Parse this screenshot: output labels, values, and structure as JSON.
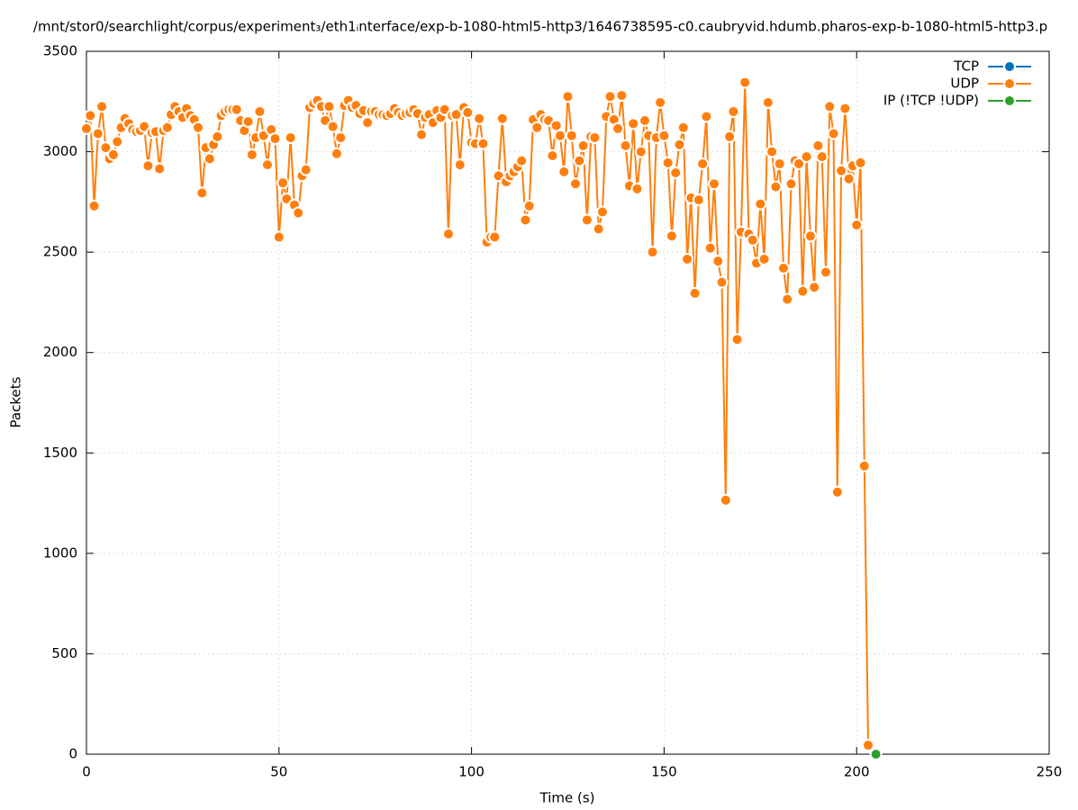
{
  "chart_data": {
    "type": "line",
    "title": "/mnt/stor0/searchlight/corpus/experiment₃/eth1ᵢnterface/exp-b-1080-html5-http3/1646738595-c0.caubryvid.hdumb.pharos-exp-b-1080-html5-http3.p",
    "x_label": "Time (s)",
    "y_label": "Packets",
    "xlim": [
      0,
      250
    ],
    "xticks": [
      0,
      50,
      100,
      150,
      200,
      250
    ],
    "ylim": [
      0,
      3500
    ],
    "yticks": [
      0,
      500,
      1000,
      1500,
      2000,
      2500,
      3000,
      3500
    ],
    "grid": true,
    "legend": "top-right",
    "series": [
      {
        "name": "TCP",
        "color": "#0072bd",
        "x": [],
        "values": []
      },
      {
        "name": "UDP",
        "color": "#ff7f0e",
        "x": [
          0,
          1,
          2,
          3,
          4,
          5,
          6,
          7,
          8,
          9,
          10,
          11,
          12,
          13,
          14,
          15,
          16,
          17,
          18,
          19,
          20,
          21,
          22,
          23,
          24,
          25,
          26,
          27,
          28,
          29,
          30,
          31,
          32,
          33,
          34,
          35,
          36,
          37,
          38,
          39,
          40,
          41,
          42,
          43,
          44,
          45,
          46,
          47,
          48,
          49,
          50,
          51,
          52,
          53,
          54,
          55,
          56,
          57,
          58,
          59,
          60,
          61,
          62,
          63,
          64,
          65,
          66,
          67,
          68,
          69,
          70,
          71,
          72,
          73,
          74,
          75,
          76,
          77,
          78,
          79,
          80,
          81,
          82,
          83,
          84,
          85,
          86,
          87,
          88,
          89,
          90,
          91,
          92,
          93,
          94,
          95,
          96,
          97,
          98,
          99,
          100,
          101,
          102,
          103,
          104,
          105,
          106,
          107,
          108,
          109,
          110,
          111,
          112,
          113,
          114,
          115,
          116,
          117,
          118,
          119,
          120,
          121,
          122,
          123,
          124,
          125,
          126,
          127,
          128,
          129,
          130,
          131,
          132,
          133,
          134,
          135,
          136,
          137,
          138,
          139,
          140,
          141,
          142,
          143,
          144,
          145,
          146,
          147,
          148,
          149,
          150,
          151,
          152,
          153,
          154,
          155,
          156,
          157,
          158,
          159,
          160,
          161,
          162,
          163,
          164,
          165,
          166,
          167,
          168,
          169,
          170,
          171,
          172,
          173,
          174,
          175,
          176,
          177,
          178,
          179,
          180,
          181,
          182,
          183,
          184,
          185,
          186,
          187,
          188,
          189,
          190,
          191,
          192,
          193,
          194,
          195,
          196,
          197,
          198,
          199,
          200,
          201,
          202,
          203
        ],
        "values": [
          3115,
          3180,
          2730,
          3090,
          3225,
          3020,
          2965,
          2985,
          3050,
          3120,
          3165,
          3140,
          3110,
          3100,
          3105,
          3125,
          2930,
          3095,
          3100,
          2915,
          3105,
          3120,
          3185,
          3225,
          3200,
          3170,
          3215,
          3180,
          3160,
          3120,
          2795,
          3020,
          2965,
          3035,
          3075,
          3180,
          3200,
          3210,
          3210,
          3210,
          3155,
          3105,
          3150,
          2985,
          3070,
          3200,
          3080,
          2935,
          3110,
          3065,
          2575,
          2845,
          2765,
          3070,
          2735,
          2695,
          2880,
          2910,
          3220,
          3240,
          3255,
          3225,
          3155,
          3225,
          3125,
          2990,
          3070,
          3230,
          3255,
          3220,
          3230,
          3190,
          3205,
          3145,
          3200,
          3200,
          3185,
          3185,
          3180,
          3190,
          3215,
          3195,
          3180,
          3190,
          3195,
          3210,
          3190,
          3085,
          3170,
          3185,
          3145,
          3205,
          3170,
          3210,
          2590,
          3180,
          3185,
          2935,
          3220,
          3195,
          3045,
          3040,
          3165,
          3040,
          2550,
          2575,
          2575,
          2880,
          3165,
          2850,
          2880,
          2900,
          2925,
          2955,
          2660,
          2730,
          3160,
          3120,
          3185,
          3160,
          3155,
          2980,
          3130,
          3080,
          2900,
          3275,
          3080,
          2840,
          2955,
          3030,
          2660,
          3075,
          3070,
          2615,
          2700,
          3175,
          3275,
          3160,
          3115,
          3280,
          3030,
          2830,
          3140,
          2815,
          3000,
          3155,
          3080,
          2500,
          3070,
          3245,
          3080,
          2945,
          2580,
          2895,
          3035,
          3120,
          2465,
          2770,
          2295,
          2760,
          2940,
          3175,
          2520,
          2840,
          2455,
          2350,
          1265,
          3075,
          3200,
          2065,
          2600,
          3345,
          2590,
          2560,
          2445,
          2740,
          2465,
          3245,
          3000,
          2825,
          2940,
          2420,
          2265,
          2840,
          2955,
          2940,
          2305,
          2975,
          2580,
          2325,
          3030,
          2975,
          2400,
          3225,
          3090,
          1305,
          2905,
          3215,
          2865,
          2930,
          2635,
          2945,
          1435,
          45
        ]
      },
      {
        "name": "IP (!TCP  !UDP)",
        "color": "#2ca02c",
        "x": [
          205
        ],
        "values": [
          0
        ]
      }
    ]
  }
}
